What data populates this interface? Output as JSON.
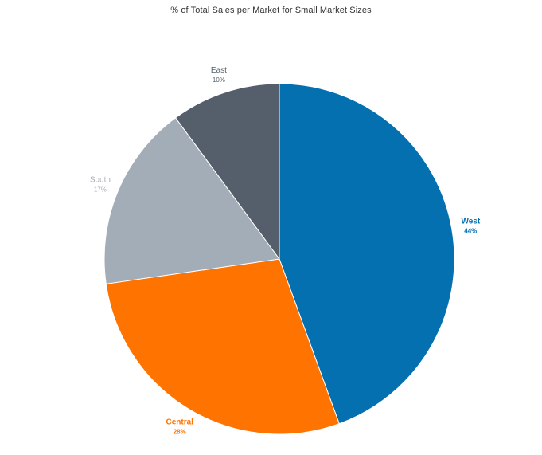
{
  "chart_data": {
    "type": "pie",
    "title": "% of Total Sales per Market for Small Market Sizes",
    "slices": [
      {
        "name": "West",
        "value": 44,
        "label": "44%",
        "color": "#0570b0"
      },
      {
        "name": "Central",
        "value": 28,
        "label": "28%",
        "color": "#ff7300"
      },
      {
        "name": "South",
        "value": 17,
        "label": "17%",
        "color": "#a3adb8"
      },
      {
        "name": "East",
        "value": 10,
        "label": "10%",
        "color": "#545f6b"
      }
    ],
    "start_angle_deg": 0,
    "direction": "clockwise",
    "label_colors": {
      "West": "#0570b0",
      "Central": "#ff7300",
      "South": "#a3adb8",
      "East": "#545f6b"
    }
  }
}
